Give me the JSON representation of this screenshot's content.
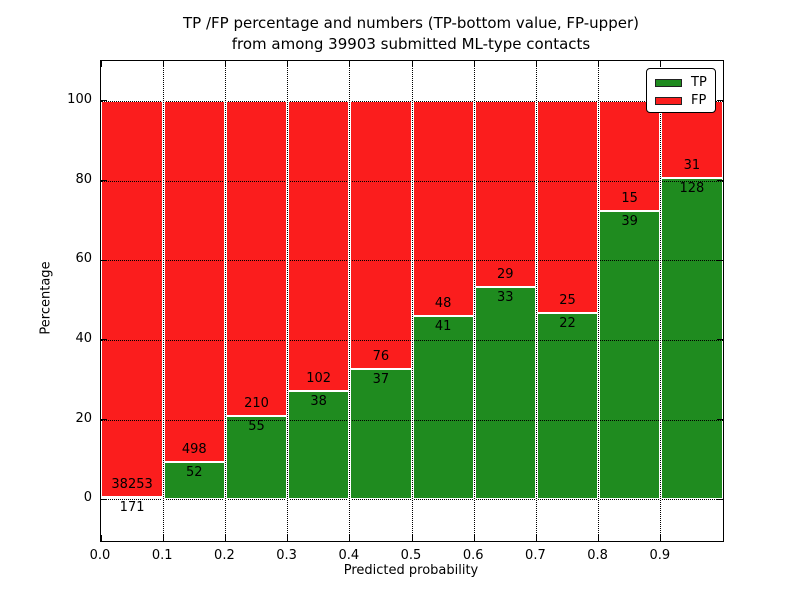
{
  "title": {
    "line1": "TP /FP percentage and numbers (TP-bottom value, FP-upper)",
    "line2": "from among 39903 submitted ML-type contacts"
  },
  "colors": {
    "tp_green": "#1f8b1f",
    "fp_red": "#fb1d1d",
    "axis": "#000000",
    "background": "#ffffff"
  },
  "chart_data": {
    "type": "bar",
    "variant": "stacked-percentage-histogram",
    "title": "TP /FP percentage and numbers (TP-bottom value, FP-upper) from among 39903 submitted ML-type contacts",
    "xlabel": "Predicted probability",
    "ylabel": "Percentage",
    "total_contacts": 39903,
    "grid": true,
    "xlim": [
      0.0,
      1.0
    ],
    "ylim": [
      -10.5,
      110
    ],
    "xticks": [
      "0.0",
      "0.1",
      "0.2",
      "0.3",
      "0.4",
      "0.5",
      "0.6",
      "0.7",
      "0.8",
      "0.9"
    ],
    "yticks": [
      "0",
      "20",
      "40",
      "60",
      "80",
      "100"
    ],
    "annotation_note": "TP count below the green/red boundary, FP count above it",
    "bins": [
      {
        "x_start": 0.0,
        "x_end": 0.1,
        "tp": 171,
        "fp": 38253
      },
      {
        "x_start": 0.1,
        "x_end": 0.2,
        "tp": 52,
        "fp": 498
      },
      {
        "x_start": 0.2,
        "x_end": 0.3,
        "tp": 55,
        "fp": 210
      },
      {
        "x_start": 0.3,
        "x_end": 0.4,
        "tp": 38,
        "fp": 102
      },
      {
        "x_start": 0.4,
        "x_end": 0.5,
        "tp": 37,
        "fp": 76
      },
      {
        "x_start": 0.5,
        "x_end": 0.6,
        "tp": 41,
        "fp": 48
      },
      {
        "x_start": 0.6,
        "x_end": 0.7,
        "tp": 33,
        "fp": 29
      },
      {
        "x_start": 0.7,
        "x_end": 0.8,
        "tp": 22,
        "fp": 25
      },
      {
        "x_start": 0.8,
        "x_end": 0.9,
        "tp": 39,
        "fp": 15
      },
      {
        "x_start": 0.9,
        "x_end": 1.0,
        "tp": 128,
        "fp": 31
      }
    ],
    "tp_percentages": [
      0.45,
      9.45,
      20.75,
      27.14,
      32.74,
      46.07,
      53.23,
      46.81,
      72.22,
      80.5
    ],
    "legend": {
      "position": "upper right",
      "entries": [
        {
          "label": "TP",
          "color": "#1f8b1f"
        },
        {
          "label": "FP",
          "color": "#fb1d1d"
        }
      ]
    }
  }
}
